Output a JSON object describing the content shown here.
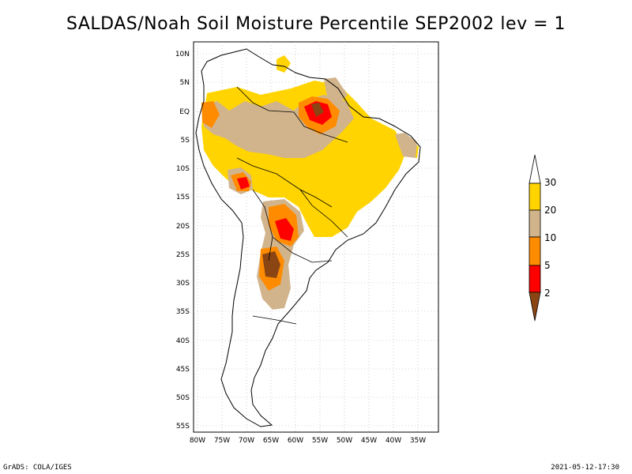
{
  "title": "SALDAS/Noah Soil Moisture Percentile SEP2002 lev = 1",
  "footer": {
    "left": "GrADS: COLA/IGES",
    "right": "2021-05-12-17:30"
  },
  "axes": {
    "lat_labels": [
      "10N",
      "5N",
      "EQ",
      "5S",
      "10S",
      "15S",
      "20S",
      "25S",
      "30S",
      "35S",
      "40S",
      "45S",
      "50S",
      "55S"
    ],
    "lon_labels": [
      "80W",
      "75W",
      "70W",
      "65W",
      "60W",
      "55W",
      "50W",
      "45W",
      "40W",
      "35W"
    ]
  },
  "colorbar": {
    "labels": [
      "30",
      "20",
      "10",
      "5",
      "2"
    ],
    "colors": {
      "above30": "#ffffff",
      "b20_30": "#ffd400",
      "b10_20": "#d2b48c",
      "b5_10": "#ff8c00",
      "b2_5": "#ff0000",
      "below2": "#8b4513"
    }
  },
  "colors": {
    "land_outline": "#000000",
    "grid": "#aaaaaa"
  }
}
